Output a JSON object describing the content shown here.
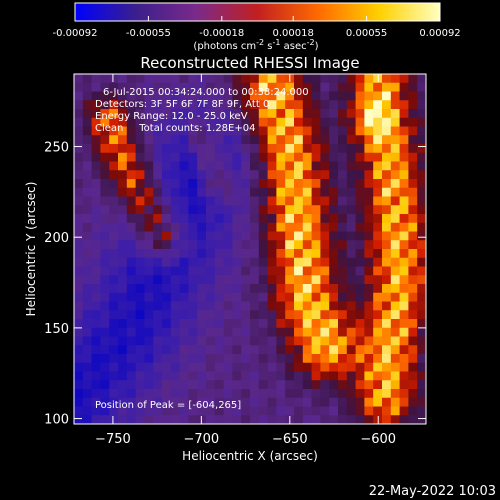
{
  "chart_data": {
    "type": "heatmap",
    "title": "Reconstructed RHESSI Image",
    "colorbar": {
      "ticks": [
        "-0.00092",
        "-0.00055",
        "-0.00018",
        "0.00018",
        "0.00055",
        "0.00092"
      ],
      "tick_values": [
        -0.00092,
        -0.00055,
        -0.00018,
        0.00018,
        0.00055,
        0.00092
      ],
      "range": [
        -0.00092,
        0.00092
      ],
      "unit_label": "(photons cm-2 s-1 asec-2)",
      "colors": [
        "#0000ff",
        "#3b1f8c",
        "#7b2a8a",
        "#c22020",
        "#ff6a00",
        "#ffd000",
        "#ffffc0"
      ]
    },
    "xlabel": "Heliocentric X (arcsec)",
    "ylabel": "Heliocentric Y (arcsec)",
    "xlim": [
      -772,
      -573
    ],
    "ylim": [
      97,
      290
    ],
    "xticks": [
      -750,
      -700,
      -650,
      -600
    ],
    "xtick_labels": [
      "−750",
      "−700",
      "−650",
      "−600"
    ],
    "yticks": [
      100,
      150,
      200,
      250
    ],
    "ytick_labels": [
      "100",
      "150",
      "200",
      "250"
    ],
    "annotations": [
      "6-Jul-2015 00:34:24.000 to 00:38:24.000",
      "Detectors: 3F 5F 6F 7F 8F 9F, Att 0",
      "Energy Range: 12.0 - 25.0 keV",
      "Clean     Total counts: 1.28E+04"
    ],
    "peak_label": "Position of Peak = [-604,265]",
    "peak": [
      -604,
      265
    ],
    "timestamp": "22-May-2022 10:03",
    "bright_ridges": [
      {
        "points": [
          [
            -752,
            265
          ],
          [
            -745,
            245
          ],
          [
            -735,
            225
          ],
          [
            -722,
            200
          ]
        ],
        "width": 9,
        "level": 0.7
      },
      {
        "points": [
          [
            -700,
            255
          ],
          [
            -695,
            242
          ],
          [
            -690,
            228
          ]
        ],
        "width": 6,
        "level": 0.45
      },
      {
        "points": [
          [
            -660,
            282
          ],
          [
            -650,
            245
          ],
          [
            -645,
            205
          ],
          [
            -640,
            165
          ],
          [
            -630,
            140
          ]
        ],
        "width": 13,
        "level": 0.9
      },
      {
        "points": [
          [
            -600,
            292
          ],
          [
            -598,
            270
          ],
          [
            -594,
            245
          ],
          [
            -590,
            215
          ],
          [
            -588,
            175
          ],
          [
            -594,
            135
          ],
          [
            -596,
            112
          ]
        ],
        "width": 12,
        "level": 0.85
      }
    ],
    "dark_region": {
      "points": [
        [
          -772,
          110
        ],
        [
          -740,
          150
        ],
        [
          -715,
          200
        ],
        [
          -700,
          240
        ]
      ],
      "level": -0.55
    }
  }
}
